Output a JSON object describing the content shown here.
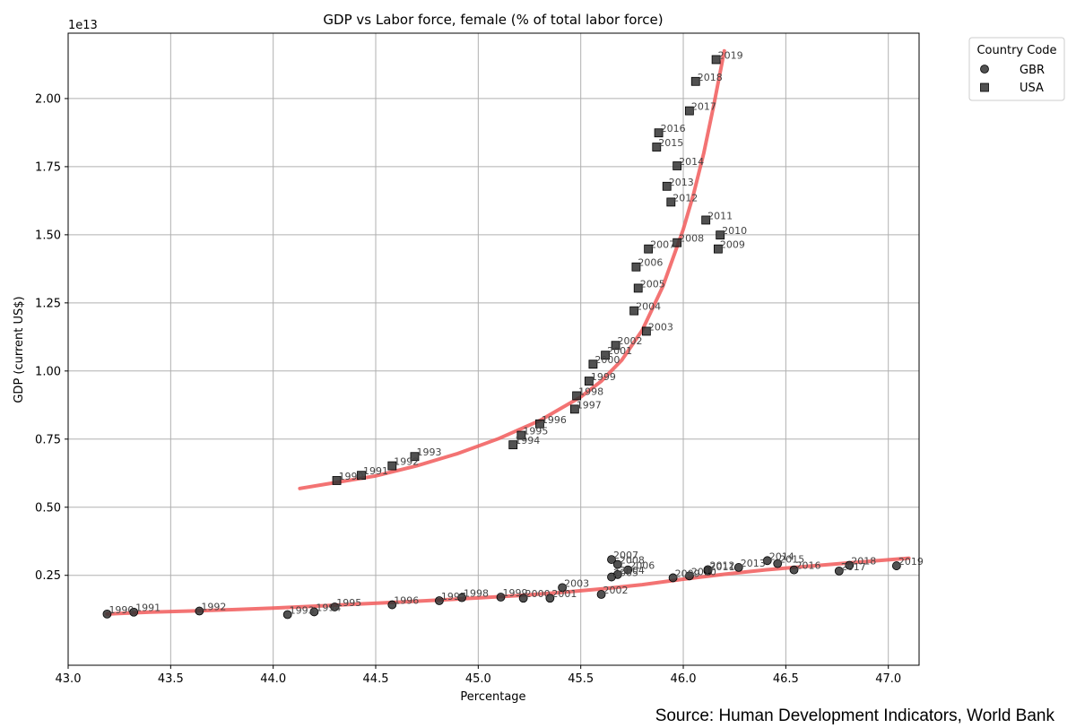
{
  "chart_data": {
    "type": "scatter",
    "title": "GDP vs Labor force, female (% of total labor force)",
    "xlabel": "Percentage",
    "ylabel": "GDP (current US$)",
    "y_offset_label": "1e13",
    "xlim": [
      43.0,
      47.15
    ],
    "ylim": [
      -0.08,
      2.24
    ],
    "x_ticks": [
      43.0,
      43.5,
      44.0,
      44.5,
      45.0,
      45.5,
      46.0,
      46.5,
      47.0
    ],
    "x_tick_labels": [
      "43.0",
      "43.5",
      "44.0",
      "44.5",
      "45.0",
      "45.5",
      "46.0",
      "46.5",
      "47.0"
    ],
    "y_ticks": [
      0.25,
      0.5,
      0.75,
      1.0,
      1.25,
      1.5,
      1.75,
      2.0
    ],
    "y_tick_labels": [
      "0.25",
      "0.50",
      "0.75",
      "1.00",
      "1.25",
      "1.50",
      "1.75",
      "2.00"
    ],
    "grid": true,
    "legend": {
      "title": "Country Code",
      "placement": "outside-top-right"
    },
    "series": [
      {
        "name": "GBR",
        "marker": "circle",
        "color": "#000000",
        "points": [
          {
            "year": "1990",
            "x": 43.19,
            "y": 0.108
          },
          {
            "year": "1991",
            "x": 43.32,
            "y": 0.115
          },
          {
            "year": "1992",
            "x": 43.64,
            "y": 0.119
          },
          {
            "year": "1993",
            "x": 44.07,
            "y": 0.106
          },
          {
            "year": "1994",
            "x": 44.2,
            "y": 0.116
          },
          {
            "year": "1995",
            "x": 44.3,
            "y": 0.134
          },
          {
            "year": "1996",
            "x": 44.58,
            "y": 0.142
          },
          {
            "year": "1997",
            "x": 44.81,
            "y": 0.157
          },
          {
            "year": "1998",
            "x": 44.92,
            "y": 0.168
          },
          {
            "year": "1999",
            "x": 45.11,
            "y": 0.17
          },
          {
            "year": "2000",
            "x": 45.22,
            "y": 0.166
          },
          {
            "year": "2001",
            "x": 45.35,
            "y": 0.166
          },
          {
            "year": "2002",
            "x": 45.6,
            "y": 0.18
          },
          {
            "year": "2003",
            "x": 45.41,
            "y": 0.205
          },
          {
            "year": "2004",
            "x": 45.68,
            "y": 0.253
          },
          {
            "year": "2005",
            "x": 45.65,
            "y": 0.244
          },
          {
            "year": "2006",
            "x": 45.73,
            "y": 0.27
          },
          {
            "year": "2007",
            "x": 45.65,
            "y": 0.308
          },
          {
            "year": "2008",
            "x": 45.68,
            "y": 0.29
          },
          {
            "year": "2009",
            "x": 45.95,
            "y": 0.241
          },
          {
            "year": "2010",
            "x": 46.03,
            "y": 0.248
          },
          {
            "year": "2011",
            "x": 46.12,
            "y": 0.266
          },
          {
            "year": "2012",
            "x": 46.12,
            "y": 0.271
          },
          {
            "year": "2013",
            "x": 46.27,
            "y": 0.279
          },
          {
            "year": "2014",
            "x": 46.41,
            "y": 0.304
          },
          {
            "year": "2015",
            "x": 46.46,
            "y": 0.293
          },
          {
            "year": "2016",
            "x": 46.54,
            "y": 0.27
          },
          {
            "year": "2017",
            "x": 46.76,
            "y": 0.266
          },
          {
            "year": "2018",
            "x": 46.81,
            "y": 0.287
          },
          {
            "year": "2019",
            "x": 47.04,
            "y": 0.285
          }
        ]
      },
      {
        "name": "USA",
        "marker": "square",
        "color": "#000000",
        "points": [
          {
            "year": "1990",
            "x": 44.31,
            "y": 0.598
          },
          {
            "year": "1991",
            "x": 44.43,
            "y": 0.617
          },
          {
            "year": "1992",
            "x": 44.58,
            "y": 0.652
          },
          {
            "year": "1993",
            "x": 44.69,
            "y": 0.686
          },
          {
            "year": "1994",
            "x": 45.17,
            "y": 0.729
          },
          {
            "year": "1995",
            "x": 45.21,
            "y": 0.764
          },
          {
            "year": "1996",
            "x": 45.3,
            "y": 0.806
          },
          {
            "year": "1997",
            "x": 45.47,
            "y": 0.86
          },
          {
            "year": "1998",
            "x": 45.48,
            "y": 0.909
          },
          {
            "year": "1999",
            "x": 45.54,
            "y": 0.963
          },
          {
            "year": "2000",
            "x": 45.56,
            "y": 1.025
          },
          {
            "year": "2001",
            "x": 45.62,
            "y": 1.058
          },
          {
            "year": "2002",
            "x": 45.67,
            "y": 1.094
          },
          {
            "year": "2003",
            "x": 45.82,
            "y": 1.146
          },
          {
            "year": "2004",
            "x": 45.76,
            "y": 1.221
          },
          {
            "year": "2005",
            "x": 45.78,
            "y": 1.304
          },
          {
            "year": "2006",
            "x": 45.77,
            "y": 1.382
          },
          {
            "year": "2007",
            "x": 45.83,
            "y": 1.448
          },
          {
            "year": "2008",
            "x": 45.97,
            "y": 1.471
          },
          {
            "year": "2009",
            "x": 46.17,
            "y": 1.448
          },
          {
            "year": "2010",
            "x": 46.18,
            "y": 1.499
          },
          {
            "year": "2011",
            "x": 46.11,
            "y": 1.554
          },
          {
            "year": "2012",
            "x": 45.94,
            "y": 1.62
          },
          {
            "year": "2013",
            "x": 45.92,
            "y": 1.678
          },
          {
            "year": "2014",
            "x": 45.97,
            "y": 1.753
          },
          {
            "year": "2015",
            "x": 45.87,
            "y": 1.822
          },
          {
            "year": "2016",
            "x": 45.88,
            "y": 1.874
          },
          {
            "year": "2017",
            "x": 46.03,
            "y": 1.955
          },
          {
            "year": "2018",
            "x": 46.06,
            "y": 2.063
          },
          {
            "year": "2019",
            "x": 46.16,
            "y": 2.143
          }
        ]
      }
    ],
    "trend_lines": [
      {
        "color": "#f15a5a",
        "points": [
          [
            43.19,
            0.108
          ],
          [
            43.4,
            0.115
          ],
          [
            43.6,
            0.119
          ],
          [
            43.8,
            0.124
          ],
          [
            44.0,
            0.13
          ],
          [
            44.2,
            0.137
          ],
          [
            44.4,
            0.144
          ],
          [
            44.6,
            0.151
          ],
          [
            44.8,
            0.159
          ],
          [
            45.0,
            0.167
          ],
          [
            45.2,
            0.176
          ],
          [
            45.4,
            0.187
          ],
          [
            45.6,
            0.2
          ],
          [
            45.8,
            0.216
          ],
          [
            46.0,
            0.236
          ],
          [
            46.2,
            0.254
          ],
          [
            46.4,
            0.27
          ],
          [
            46.6,
            0.283
          ],
          [
            46.8,
            0.295
          ],
          [
            47.0,
            0.307
          ],
          [
            47.1,
            0.313
          ]
        ]
      },
      {
        "color": "#f15a5a",
        "points": [
          [
            44.13,
            0.569
          ],
          [
            44.3,
            0.59
          ],
          [
            44.5,
            0.615
          ],
          [
            44.7,
            0.652
          ],
          [
            44.9,
            0.697
          ],
          [
            45.1,
            0.752
          ],
          [
            45.3,
            0.818
          ],
          [
            45.5,
            0.905
          ],
          [
            45.6,
            0.963
          ],
          [
            45.7,
            1.04
          ],
          [
            45.8,
            1.15
          ],
          [
            45.9,
            1.31
          ],
          [
            46.0,
            1.52
          ],
          [
            46.05,
            1.65
          ],
          [
            46.1,
            1.8
          ],
          [
            46.15,
            1.98
          ],
          [
            46.2,
            2.175
          ]
        ]
      }
    ]
  },
  "source_note": "Source: Human Development Indicators, World Bank"
}
